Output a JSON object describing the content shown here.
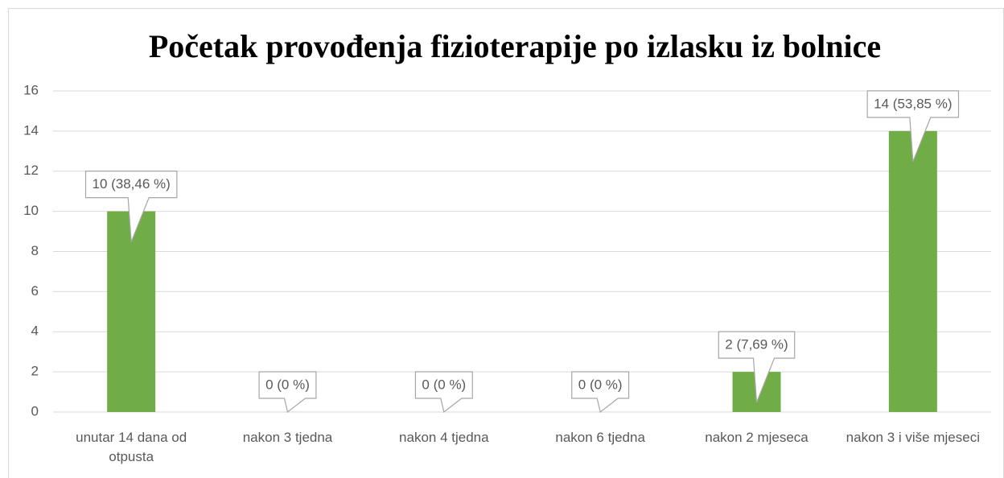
{
  "chart_data": {
    "type": "bar",
    "title": "Početak provođenja fizioterapije po izlasku iz bolnice",
    "categories": [
      "unutar 14 dana od otpusta",
      "nakon 3 tjedna",
      "nakon 4 tjedna",
      "nakon 6 tjedna",
      "nakon 2 mjeseca",
      "nakon 3 i više mjeseci"
    ],
    "values": [
      10,
      0,
      0,
      0,
      2,
      14
    ],
    "value_labels": [
      "10 (38,46 %)",
      "0 (0 %)",
      "0 (0 %)",
      "0 (0 %)",
      "2 (7,69 %)",
      "14 (53,85 %)"
    ],
    "color": "#70ad47",
    "ylim": [
      0,
      16
    ],
    "yticks": [
      0,
      2,
      4,
      6,
      8,
      10,
      12,
      14,
      16
    ],
    "grid": true
  }
}
